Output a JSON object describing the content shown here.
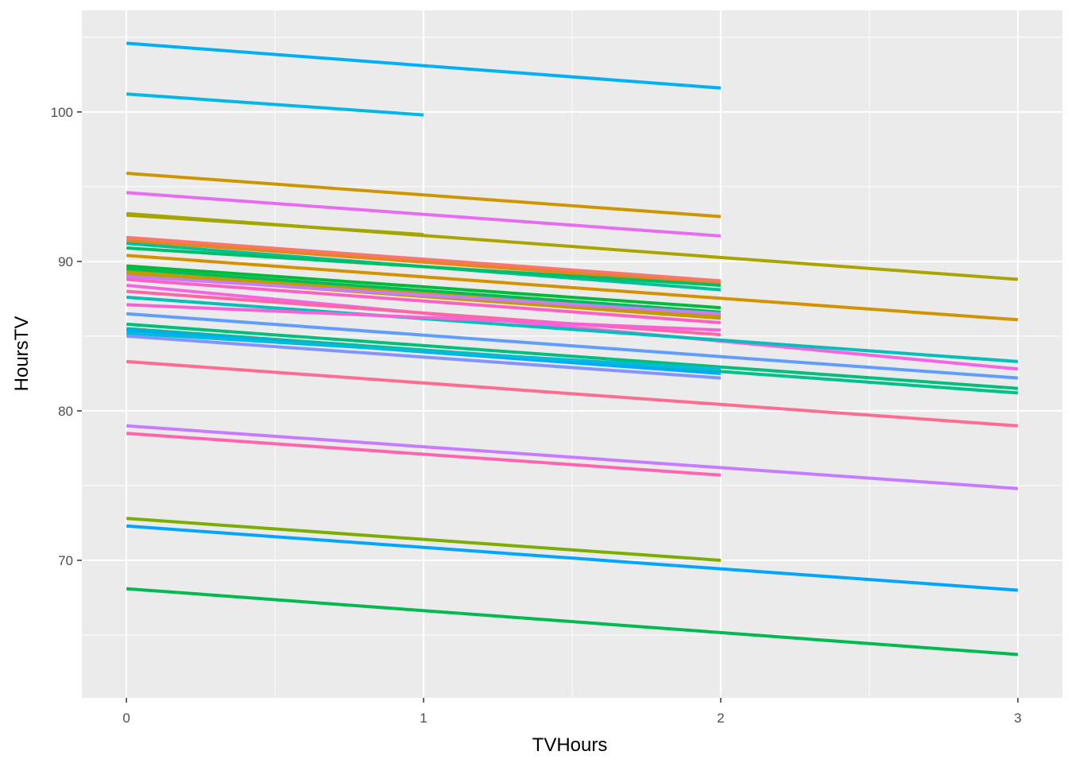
{
  "chart_data": {
    "type": "line",
    "xlabel": "TVHours",
    "ylabel": "HoursTV",
    "xlim": [
      -0.15,
      3.15
    ],
    "ylim": [
      60.8,
      106.8
    ],
    "x_ticks": [
      0,
      1,
      2,
      3
    ],
    "y_ticks": [
      70,
      80,
      90,
      100
    ],
    "grid": true,
    "legend": "none",
    "series": [
      {
        "color": "#00B0F6",
        "x": [
          0,
          2
        ],
        "y": [
          104.6,
          101.6
        ]
      },
      {
        "color": "#00B8E7",
        "x": [
          0,
          1
        ],
        "y": [
          101.2,
          99.8
        ]
      },
      {
        "color": "#CD9600",
        "x": [
          0,
          2
        ],
        "y": [
          95.9,
          93.0
        ]
      },
      {
        "color": "#E76BF3",
        "x": [
          0,
          2
        ],
        "y": [
          94.6,
          91.7
        ]
      },
      {
        "color": "#ABA300",
        "x": [
          0,
          3
        ],
        "y": [
          93.2,
          88.8
        ]
      },
      {
        "color": "#A3A500",
        "x": [
          0,
          1
        ],
        "y": [
          93.1,
          91.8
        ]
      },
      {
        "color": "#F8766D",
        "x": [
          0,
          2
        ],
        "y": [
          91.6,
          88.7
        ]
      },
      {
        "color": "#E7861B",
        "x": [
          0,
          2
        ],
        "y": [
          91.4,
          88.5
        ]
      },
      {
        "color": "#00C19A",
        "x": [
          0,
          2
        ],
        "y": [
          91.2,
          88.1
        ]
      },
      {
        "color": "#00BE67",
        "x": [
          0,
          2
        ],
        "y": [
          90.9,
          88.4
        ]
      },
      {
        "color": "#D39200",
        "x": [
          0,
          3
        ],
        "y": [
          90.4,
          86.1
        ]
      },
      {
        "color": "#00BA38",
        "x": [
          0,
          2
        ],
        "y": [
          89.7,
          86.9
        ]
      },
      {
        "color": "#00BC56",
        "x": [
          0,
          2
        ],
        "y": [
          89.5,
          86.6
        ]
      },
      {
        "color": "#BE9C00",
        "x": [
          0,
          2
        ],
        "y": [
          89.3,
          86.4
        ]
      },
      {
        "color": "#C49A00",
        "x": [
          0,
          2
        ],
        "y": [
          89.1,
          86.2
        ]
      },
      {
        "color": "#C77CFF",
        "x": [
          0,
          2
        ],
        "y": [
          89.0,
          86.5
        ]
      },
      {
        "color": "#FF61C3",
        "x": [
          0,
          2
        ],
        "y": [
          88.8,
          85.9
        ]
      },
      {
        "color": "#F564E3",
        "x": [
          0,
          3
        ],
        "y": [
          88.4,
          82.8
        ]
      },
      {
        "color": "#FF67A4",
        "x": [
          0,
          2
        ],
        "y": [
          88.0,
          85.1
        ]
      },
      {
        "color": "#00C0B8",
        "x": [
          0,
          3
        ],
        "y": [
          87.6,
          83.3
        ]
      },
      {
        "color": "#FB61D7",
        "x": [
          0,
          2
        ],
        "y": [
          87.1,
          85.4
        ]
      },
      {
        "color": "#619CFF",
        "x": [
          0,
          3
        ],
        "y": [
          86.5,
          82.2
        ]
      },
      {
        "color": "#00BF7D",
        "x": [
          0,
          3
        ],
        "y": [
          85.8,
          81.5
        ]
      },
      {
        "color": "#00C08B",
        "x": [
          0,
          3
        ],
        "y": [
          85.5,
          81.2
        ]
      },
      {
        "color": "#00A9FF",
        "x": [
          0,
          2
        ],
        "y": [
          85.4,
          82.5
        ]
      },
      {
        "color": "#00BCD8",
        "x": [
          0,
          2
        ],
        "y": [
          85.2,
          82.8
        ]
      },
      {
        "color": "#8494FF",
        "x": [
          0,
          2
        ],
        "y": [
          85.0,
          82.2
        ]
      },
      {
        "color": "#FF6C91",
        "x": [
          0,
          3
        ],
        "y": [
          83.3,
          79.0
        ]
      },
      {
        "color": "#C77CFF",
        "x": [
          0,
          3
        ],
        "y": [
          79.0,
          74.8
        ]
      },
      {
        "color": "#FF65AE",
        "x": [
          0,
          2
        ],
        "y": [
          78.5,
          75.7
        ]
      },
      {
        "color": "#7CAE00",
        "x": [
          0,
          2
        ],
        "y": [
          72.8,
          70.0
        ]
      },
      {
        "color": "#00A5FF",
        "x": [
          0,
          3
        ],
        "y": [
          72.3,
          68.0
        ]
      },
      {
        "color": "#00BA50",
        "x": [
          0,
          3
        ],
        "y": [
          68.1,
          63.7
        ]
      }
    ]
  }
}
